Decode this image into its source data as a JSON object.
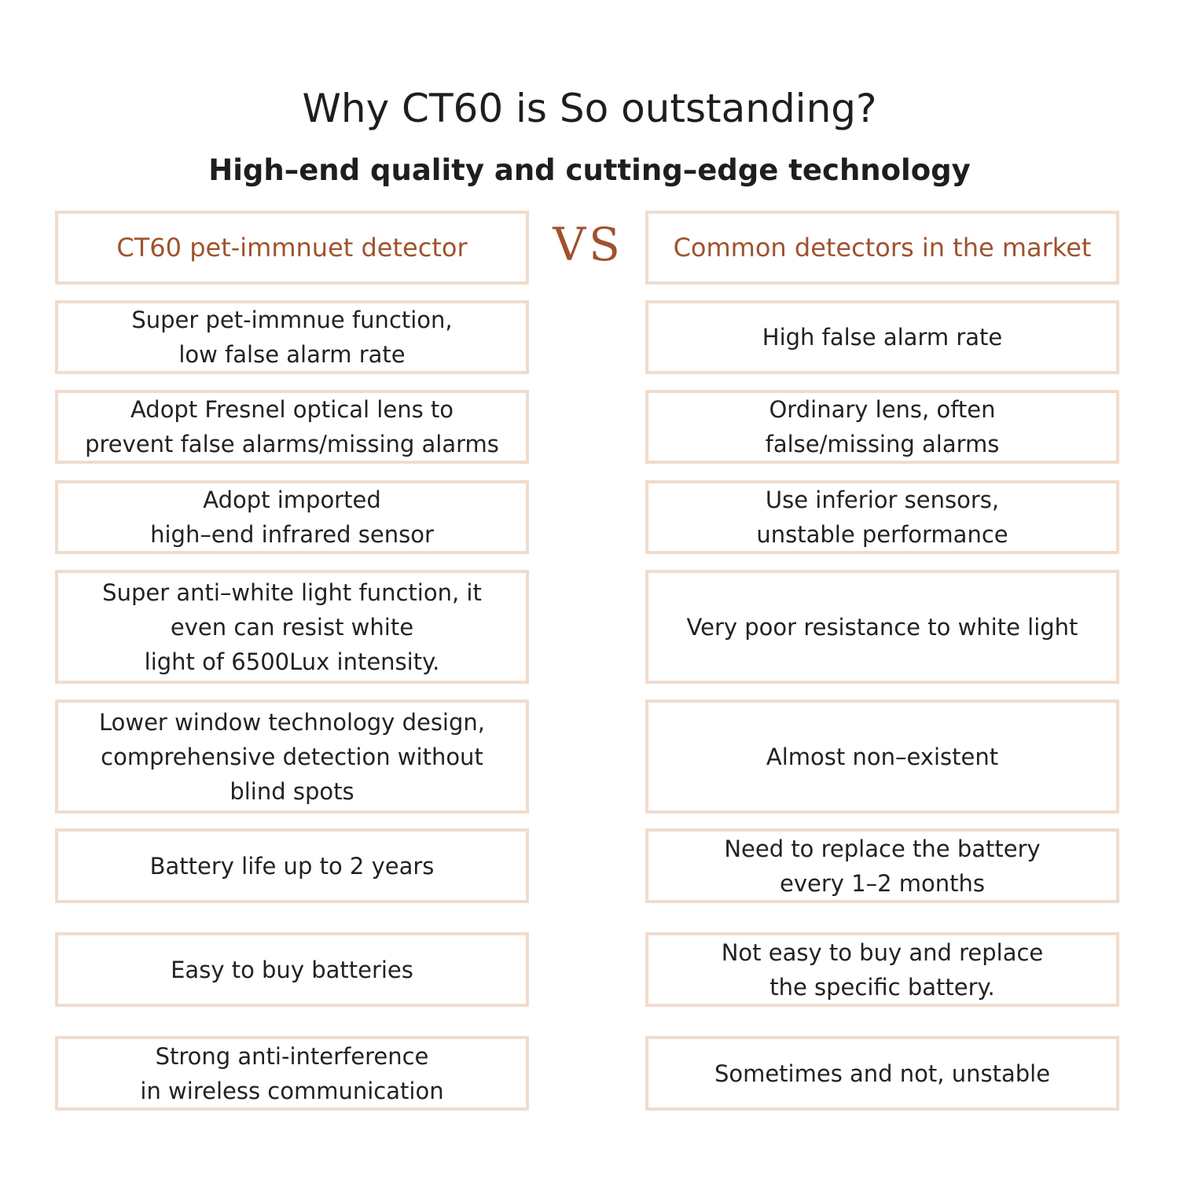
{
  "title": "Why CT60 is So outstanding?",
  "subtitle": "High–end quality and cutting–edge technology",
  "vs_label": "VS",
  "colors": {
    "accent": "#a0522d",
    "border": "#f0dccd",
    "text": "#222222"
  },
  "header": {
    "left": "CT60 pet-immnuet detector",
    "right": "Common detectors in the market"
  },
  "rows": [
    {
      "left": "Super pet-immnue function,\nlow false alarm rate",
      "right": "High false alarm rate"
    },
    {
      "left": "Adopt Fresnel optical lens to\nprevent false alarms/missing alarms",
      "right": "Ordinary lens, often\nfalse/missing alarms"
    },
    {
      "left": "Adopt imported\nhigh–end infrared sensor",
      "right": "Use inferior sensors,\nunstable performance"
    },
    {
      "left": "Super anti–white light function, it\neven can resist white\nlight of 6500Lux intensity.",
      "right": "Very poor resistance to white light"
    },
    {
      "left": "Lower window technology design,\ncomprehensive detection without\nblind spots",
      "right": "Almost non–existent"
    },
    {
      "left": "Battery life up to 2 years",
      "right": "Need to replace the battery\nevery 1–2 months"
    },
    {
      "left": "Easy to buy batteries",
      "right": "Not easy to buy and replace\nthe specific battery."
    },
    {
      "left": "Strong anti-interference\nin wireless communication",
      "right": "Sometimes and not, unstable"
    }
  ]
}
